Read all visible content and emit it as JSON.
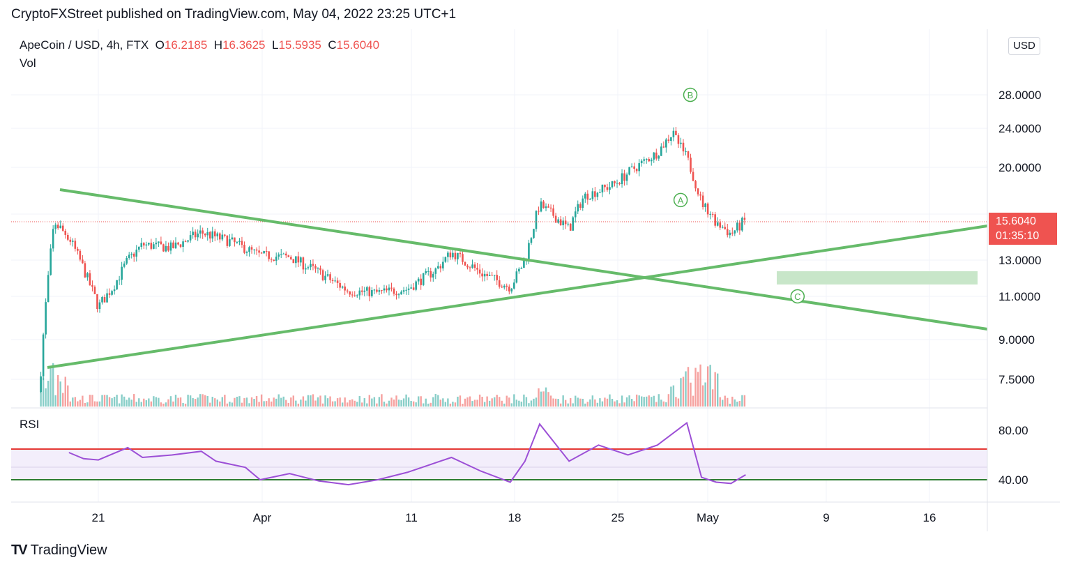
{
  "header": {
    "publish_line": "CryptoFXStreet published on TradingView.com, May 04, 2022 23:25 UTC+1"
  },
  "ohlc": {
    "symbol": "ApeCoin / USD, 4h, FTX",
    "o_label": "O",
    "o_value": "16.2185",
    "h_label": "H",
    "h_value": "16.3625",
    "l_label": "L",
    "l_value": "15.5935",
    "c_label": "C",
    "c_value": "15.6040"
  },
  "vol_label": "Vol",
  "rsi_label": "RSI",
  "currency_button": "USD",
  "price_tag": {
    "price": "15.6040",
    "countdown": "01:35:10"
  },
  "footer": {
    "brand": "TradingView",
    "logo": "TV"
  },
  "colors": {
    "up": "#26a69a",
    "down": "#ef5350",
    "trendline": "#66bb6a",
    "rsi": "#9c4fd6",
    "rsi_upper": "#e53935",
    "rsi_lower": "#2e7d32",
    "zone": "#c8e6c9"
  },
  "chart_data": {
    "type": "candlestick",
    "timeframe": "4h",
    "x_ticks": [
      "21",
      "Apr",
      "11",
      "18",
      "25",
      "May",
      "9",
      "16"
    ],
    "y_ticks": [
      "28.0000",
      "24.0000",
      "20.0000",
      "13.0000",
      "11.0000",
      "9.0000",
      "7.5000"
    ],
    "price_close_path": [
      [
        "Mar 17",
        7.0
      ],
      [
        "Mar 18",
        15.5
      ],
      [
        "Mar 19",
        14.5
      ],
      [
        "Mar 20",
        12.5
      ],
      [
        "Mar 21",
        10.5
      ],
      [
        "Mar 22",
        11.5
      ],
      [
        "Mar 23",
        13.0
      ],
      [
        "Mar 24",
        14.0
      ],
      [
        "Mar 26",
        13.8
      ],
      [
        "Mar 28",
        14.8
      ],
      [
        "Mar 30",
        14.2
      ],
      [
        "Apr 1",
        13.3
      ],
      [
        "Apr 3",
        13.2
      ],
      [
        "Apr 5",
        12.3
      ],
      [
        "Apr 7",
        11.3
      ],
      [
        "Apr 9",
        11.2
      ],
      [
        "Apr 11",
        11.4
      ],
      [
        "Apr 13",
        12.5
      ],
      [
        "Apr 14",
        13.5
      ],
      [
        "Apr 16",
        12.3
      ],
      [
        "Apr 18",
        11.5
      ],
      [
        "Apr 19",
        13.0
      ],
      [
        "Apr 20",
        16.8
      ],
      [
        "Apr 22",
        15.0
      ],
      [
        "Apr 23",
        17.5
      ],
      [
        "Apr 25",
        18.5
      ],
      [
        "Apr 26",
        19.5
      ],
      [
        "Apr 28",
        21.5
      ],
      [
        "Apr 29",
        23.5
      ],
      [
        "Apr 30",
        21.0
      ],
      [
        "May 1",
        17.0
      ],
      [
        "May 2",
        15.5
      ],
      [
        "May 3",
        14.7
      ],
      [
        "May 4",
        15.6
      ]
    ],
    "annotations": [
      {
        "label": "A",
        "date": "May 1",
        "price": 17.2
      },
      {
        "label": "B",
        "date": "Apr 30",
        "price": 28.0
      },
      {
        "label": "C",
        "date": "May 8",
        "price": 11.0
      }
    ],
    "rsi": {
      "upper_band": 65,
      "lower_band": 40,
      "mid_band": 50,
      "y_ticks": [
        "80.00",
        "40.00"
      ],
      "values": [
        [
          "Mar 19",
          62
        ],
        [
          "Mar 20",
          57
        ],
        [
          "Mar 21",
          56
        ],
        [
          "Mar 22",
          61
        ],
        [
          "Mar 23",
          66
        ],
        [
          "Mar 24",
          58
        ],
        [
          "Mar 26",
          60
        ],
        [
          "Mar 28",
          63
        ],
        [
          "Mar 29",
          55
        ],
        [
          "Mar 31",
          50
        ],
        [
          "Apr 1",
          40
        ],
        [
          "Apr 3",
          45
        ],
        [
          "Apr 5",
          39
        ],
        [
          "Apr 7",
          36
        ],
        [
          "Apr 9",
          40
        ],
        [
          "Apr 11",
          46
        ],
        [
          "Apr 12",
          50
        ],
        [
          "Apr 14",
          58
        ],
        [
          "Apr 16",
          47
        ],
        [
          "Apr 18",
          38
        ],
        [
          "Apr 19",
          55
        ],
        [
          "Apr 20",
          85
        ],
        [
          "Apr 22",
          55
        ],
        [
          "Apr 24",
          68
        ],
        [
          "Apr 26",
          60
        ],
        [
          "Apr 28",
          68
        ],
        [
          "Apr 30",
          86
        ],
        [
          "May 1",
          42
        ],
        [
          "May 2",
          38
        ],
        [
          "May 3",
          37
        ],
        [
          "May 4",
          44
        ]
      ]
    }
  }
}
